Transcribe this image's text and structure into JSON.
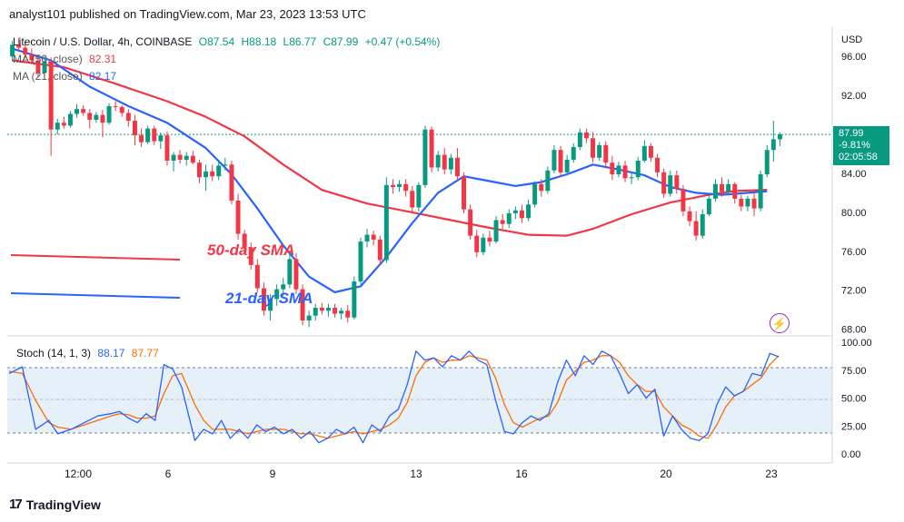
{
  "header": {
    "text": "analyst101 published on TradingView.com, Mar 23, 2023 13:53 UTC"
  },
  "legend": {
    "symbol": "Litecoin / U.S. Dollar, 4h, COINBASE",
    "open": "O87.54",
    "high": "H88.18",
    "low": "L86.77",
    "close": "C87.99",
    "change": "+0.47 (+0.54%)",
    "ma50": {
      "label": "MA (50, close)",
      "value": "82.31",
      "color": "#f23645"
    },
    "ma21": {
      "label": "MA (21, close)",
      "value": "82.17",
      "color": "#2962ff"
    }
  },
  "stoch": {
    "label": "Stoch (14, 1, 3)",
    "k_value": "88.17",
    "d_value": "87.77",
    "k_color": "#2962ff",
    "d_color": "#ff6d00"
  },
  "price_tag": {
    "price": "87.99",
    "change": "-9.81%",
    "countdown": "02:05:58",
    "color": "#089981"
  },
  "annotations": {
    "sma50": "50-day SMA",
    "sma21": "21-day SMA"
  },
  "brand": "TradingView",
  "chart_data": {
    "type": "candlestick",
    "currency": "USD",
    "price_ticks": [
      "96.00",
      "92.00",
      "88.00",
      "84.00",
      "80.00",
      "76.00",
      "72.00",
      "68.00"
    ],
    "stoch_ticks": [
      "100.00",
      "75.00",
      "50.00",
      "25.00",
      "0.00"
    ],
    "time_labels": [
      "12:00",
      "6",
      "9",
      "13",
      "16",
      "20",
      "23"
    ],
    "ylim": [
      67.5,
      99.0
    ],
    "last_price": 87.99,
    "candles": [
      [
        96.0,
        97.6,
        95.5,
        97.2
      ],
      [
        97.2,
        97.9,
        96.6,
        96.9
      ],
      [
        96.9,
        97.5,
        95.8,
        96.2
      ],
      [
        96.2,
        96.8,
        95.2,
        95.6
      ],
      [
        95.6,
        96.2,
        93.9,
        94.3
      ],
      [
        94.3,
        96.0,
        94.0,
        95.5
      ],
      [
        95.5,
        95.9,
        85.8,
        88.5
      ],
      [
        88.5,
        89.6,
        88.0,
        89.2
      ],
      [
        89.2,
        89.8,
        88.6,
        88.9
      ],
      [
        88.9,
        90.4,
        88.7,
        90.1
      ],
      [
        90.1,
        91.1,
        89.7,
        90.6
      ],
      [
        90.6,
        91.0,
        89.9,
        90.2
      ],
      [
        90.2,
        90.6,
        88.6,
        89.5
      ],
      [
        89.5,
        90.3,
        89.2,
        90.0
      ],
      [
        90.0,
        90.5,
        87.7,
        89.2
      ],
      [
        89.2,
        91.2,
        89.0,
        90.9
      ],
      [
        90.9,
        91.4,
        90.4,
        90.8
      ],
      [
        90.8,
        91.0,
        89.8,
        90.2
      ],
      [
        90.2,
        90.6,
        88.8,
        89.4
      ],
      [
        89.4,
        90.0,
        86.9,
        87.9
      ],
      [
        87.9,
        88.6,
        86.7,
        87.2
      ],
      [
        87.2,
        88.9,
        87.0,
        88.6
      ],
      [
        88.6,
        88.9,
        86.9,
        87.3
      ],
      [
        87.3,
        88.2,
        86.5,
        87.9
      ],
      [
        87.9,
        88.3,
        84.8,
        85.3
      ],
      [
        85.3,
        86.2,
        84.2,
        85.9
      ],
      [
        85.9,
        86.4,
        85.0,
        85.4
      ],
      [
        85.4,
        86.2,
        84.8,
        85.8
      ],
      [
        85.8,
        86.3,
        84.9,
        85.1
      ],
      [
        85.1,
        85.4,
        83.0,
        83.6
      ],
      [
        83.6,
        84.9,
        82.2,
        84.2
      ],
      [
        84.2,
        84.9,
        83.2,
        83.7
      ],
      [
        83.7,
        85.4,
        83.3,
        84.8
      ],
      [
        84.8,
        85.6,
        84.3,
        84.9
      ],
      [
        84.9,
        85.3,
        80.8,
        81.2
      ],
      [
        81.2,
        81.9,
        77.2,
        77.8
      ],
      [
        77.8,
        78.2,
        75.9,
        76.4
      ],
      [
        76.4,
        76.9,
        74.1,
        74.6
      ],
      [
        74.6,
        75.2,
        71.8,
        72.2
      ],
      [
        72.2,
        72.8,
        69.4,
        69.9
      ],
      [
        69.9,
        71.6,
        68.9,
        71.1
      ],
      [
        71.1,
        72.6,
        70.4,
        72.1
      ],
      [
        72.1,
        73.3,
        71.4,
        72.6
      ],
      [
        72.6,
        75.8,
        72.2,
        75.2
      ],
      [
        75.2,
        75.8,
        71.6,
        72.1
      ],
      [
        72.1,
        72.6,
        68.4,
        68.9
      ],
      [
        68.9,
        69.9,
        68.2,
        69.4
      ],
      [
        69.4,
        70.6,
        68.9,
        70.2
      ],
      [
        70.2,
        70.7,
        69.5,
        69.9
      ],
      [
        69.9,
        70.6,
        69.3,
        70.2
      ],
      [
        70.2,
        70.6,
        69.2,
        69.6
      ],
      [
        69.6,
        70.2,
        69.0,
        69.9
      ],
      [
        69.9,
        70.5,
        68.7,
        69.2
      ],
      [
        69.2,
        73.4,
        69.0,
        72.9
      ],
      [
        72.9,
        77.4,
        72.6,
        77.0
      ],
      [
        77.0,
        78.3,
        76.4,
        77.7
      ],
      [
        77.7,
        78.1,
        76.6,
        77.2
      ],
      [
        77.2,
        77.6,
        74.6,
        75.1
      ],
      [
        75.1,
        83.6,
        74.8,
        82.8
      ],
      [
        82.8,
        83.4,
        81.9,
        82.6
      ],
      [
        82.6,
        83.3,
        82.1,
        82.9
      ],
      [
        82.9,
        83.4,
        81.6,
        82.2
      ],
      [
        82.2,
        82.7,
        79.9,
        80.5
      ],
      [
        80.5,
        83.1,
        80.1,
        82.8
      ],
      [
        82.8,
        88.9,
        82.5,
        88.5
      ],
      [
        88.5,
        88.8,
        84.1,
        84.6
      ],
      [
        84.6,
        86.3,
        84.2,
        85.9
      ],
      [
        85.9,
        86.6,
        83.9,
        84.4
      ],
      [
        84.4,
        86.0,
        83.9,
        85.6
      ],
      [
        85.6,
        86.6,
        83.2,
        83.7
      ],
      [
        83.7,
        84.1,
        79.9,
        80.3
      ],
      [
        80.3,
        80.8,
        77.2,
        77.6
      ],
      [
        77.6,
        78.2,
        75.4,
        75.9
      ],
      [
        75.9,
        77.8,
        75.6,
        77.4
      ],
      [
        77.4,
        78.1,
        76.5,
        77.0
      ],
      [
        77.0,
        79.6,
        76.8,
        79.2
      ],
      [
        79.2,
        79.8,
        78.3,
        78.8
      ],
      [
        78.8,
        80.3,
        78.4,
        79.9
      ],
      [
        79.9,
        80.6,
        79.3,
        80.2
      ],
      [
        80.2,
        80.8,
        78.9,
        79.4
      ],
      [
        79.4,
        81.3,
        79.1,
        80.8
      ],
      [
        80.8,
        83.2,
        80.5,
        82.9
      ],
      [
        82.9,
        83.4,
        81.6,
        82.2
      ],
      [
        82.2,
        84.7,
        81.9,
        84.3
      ],
      [
        84.3,
        86.9,
        84.0,
        86.4
      ],
      [
        86.4,
        86.8,
        83.6,
        84.1
      ],
      [
        84.1,
        85.9,
        83.8,
        85.4
      ],
      [
        85.4,
        87.1,
        85.1,
        86.7
      ],
      [
        86.7,
        88.6,
        86.4,
        88.2
      ],
      [
        88.2,
        88.6,
        87.1,
        87.6
      ],
      [
        87.6,
        88.2,
        85.1,
        85.6
      ],
      [
        85.6,
        87.2,
        85.3,
        86.9
      ],
      [
        86.9,
        87.3,
        84.6,
        85.1
      ],
      [
        85.1,
        85.8,
        83.3,
        83.9
      ],
      [
        83.9,
        85.2,
        83.6,
        84.8
      ],
      [
        84.8,
        85.3,
        83.1,
        83.5
      ],
      [
        83.5,
        84.0,
        82.9,
        83.6
      ],
      [
        83.6,
        85.7,
        83.3,
        85.3
      ],
      [
        85.3,
        87.4,
        85.1,
        86.8
      ],
      [
        86.8,
        87.1,
        85.2,
        85.6
      ],
      [
        85.6,
        86.0,
        83.6,
        84.1
      ],
      [
        84.1,
        84.5,
        81.5,
        81.9
      ],
      [
        81.9,
        84.3,
        81.6,
        83.8
      ],
      [
        83.8,
        84.3,
        81.9,
        82.4
      ],
      [
        82.4,
        82.8,
        79.6,
        80.1
      ],
      [
        80.1,
        80.6,
        78.6,
        79.1
      ],
      [
        79.1,
        80.1,
        77.1,
        77.6
      ],
      [
        77.6,
        80.3,
        77.3,
        79.8
      ],
      [
        79.8,
        81.8,
        79.6,
        81.4
      ],
      [
        81.4,
        83.4,
        81.1,
        82.9
      ],
      [
        82.9,
        83.6,
        81.6,
        82.1
      ],
      [
        82.1,
        83.4,
        81.8,
        82.9
      ],
      [
        82.9,
        83.1,
        80.9,
        81.4
      ],
      [
        81.4,
        81.8,
        80.1,
        80.6
      ],
      [
        80.6,
        81.7,
        80.1,
        81.4
      ],
      [
        81.4,
        82.2,
        79.6,
        80.4
      ],
      [
        80.4,
        84.3,
        80.1,
        83.9
      ],
      [
        83.9,
        86.9,
        83.6,
        86.4
      ],
      [
        86.4,
        89.4,
        85.2,
        87.5
      ],
      [
        87.5,
        88.2,
        86.8,
        88.0
      ]
    ],
    "ma50": [
      [
        0,
        95.6
      ],
      [
        8,
        94.9
      ],
      [
        16,
        93.2
      ],
      [
        24,
        91.4
      ],
      [
        30,
        89.8
      ],
      [
        36,
        87.8
      ],
      [
        42,
        84.9
      ],
      [
        48,
        82.3
      ],
      [
        55,
        80.9
      ],
      [
        62,
        80.0
      ],
      [
        68,
        79.2
      ],
      [
        74,
        78.4
      ],
      [
        80,
        77.7
      ],
      [
        86,
        77.6
      ],
      [
        90,
        78.3
      ],
      [
        96,
        79.8
      ],
      [
        102,
        81.0
      ],
      [
        108,
        81.8
      ],
      [
        112,
        82.2
      ],
      [
        117,
        82.31
      ]
    ],
    "ma21": [
      [
        0,
        96.8
      ],
      [
        6,
        95.6
      ],
      [
        12,
        92.9
      ],
      [
        18,
        90.9
      ],
      [
        24,
        89.2
      ],
      [
        30,
        86.6
      ],
      [
        34,
        83.9
      ],
      [
        38,
        80.4
      ],
      [
        42,
        76.6
      ],
      [
        46,
        73.4
      ],
      [
        50,
        71.8
      ],
      [
        54,
        72.4
      ],
      [
        58,
        75.4
      ],
      [
        62,
        78.9
      ],
      [
        66,
        82.0
      ],
      [
        70,
        83.7
      ],
      [
        74,
        83.2
      ],
      [
        78,
        82.7
      ],
      [
        82,
        83.1
      ],
      [
        86,
        83.9
      ],
      [
        90,
        84.9
      ],
      [
        94,
        84.4
      ],
      [
        98,
        83.8
      ],
      [
        102,
        82.6
      ],
      [
        106,
        82.0
      ],
      [
        110,
        81.8
      ],
      [
        114,
        82.0
      ],
      [
        117,
        82.17
      ]
    ],
    "stoch_k": [
      [
        0,
        72
      ],
      [
        3,
        78
      ],
      [
        6,
        22
      ],
      [
        9,
        30
      ],
      [
        11,
        18
      ],
      [
        14,
        22
      ],
      [
        17,
        28
      ],
      [
        20,
        34
      ],
      [
        23,
        36
      ],
      [
        25,
        38
      ],
      [
        27,
        32
      ],
      [
        29,
        28
      ],
      [
        31,
        36
      ],
      [
        33,
        30
      ],
      [
        35,
        80
      ],
      [
        37,
        76
      ],
      [
        39,
        60
      ],
      [
        42,
        12
      ],
      [
        44,
        22
      ],
      [
        46,
        18
      ],
      [
        48,
        30
      ],
      [
        50,
        14
      ],
      [
        52,
        22
      ],
      [
        54,
        14
      ],
      [
        56,
        26
      ],
      [
        58,
        20
      ],
      [
        60,
        24
      ],
      [
        62,
        18
      ],
      [
        64,
        22
      ],
      [
        66,
        14
      ],
      [
        68,
        20
      ],
      [
        70,
        10
      ],
      [
        72,
        14
      ],
      [
        74,
        22
      ],
      [
        76,
        18
      ],
      [
        78,
        24
      ],
      [
        80,
        10
      ],
      [
        82,
        26
      ],
      [
        84,
        20
      ],
      [
        86,
        34
      ],
      [
        88,
        40
      ],
      [
        90,
        62
      ],
      [
        92,
        92
      ],
      [
        94,
        84
      ],
      [
        96,
        86
      ],
      [
        98,
        78
      ],
      [
        100,
        88
      ],
      [
        102,
        84
      ],
      [
        104,
        92
      ],
      [
        106,
        84
      ],
      [
        108,
        80
      ],
      [
        110,
        48
      ],
      [
        112,
        20
      ],
      [
        114,
        18
      ],
      [
        116,
        28
      ],
      [
        118,
        34
      ],
      [
        120,
        30
      ],
      [
        122,
        36
      ],
      [
        124,
        64
      ],
      [
        126,
        84
      ],
      [
        128,
        70
      ],
      [
        130,
        88
      ],
      [
        132,
        80
      ],
      [
        134,
        92
      ],
      [
        136,
        88
      ],
      [
        138,
        72
      ],
      [
        140,
        54
      ],
      [
        142,
        62
      ],
      [
        144,
        50
      ],
      [
        146,
        58
      ],
      [
        148,
        16
      ],
      [
        150,
        34
      ],
      [
        152,
        22
      ],
      [
        154,
        14
      ],
      [
        156,
        12
      ],
      [
        158,
        18
      ],
      [
        160,
        44
      ],
      [
        162,
        60
      ],
      [
        164,
        52
      ],
      [
        166,
        56
      ],
      [
        168,
        72
      ],
      [
        170,
        70
      ],
      [
        172,
        90
      ],
      [
        174,
        87
      ]
    ],
    "stoch_d": [
      [
        0,
        74
      ],
      [
        3,
        72
      ],
      [
        6,
        48
      ],
      [
        9,
        28
      ],
      [
        11,
        24
      ],
      [
        14,
        22
      ],
      [
        17,
        26
      ],
      [
        20,
        30
      ],
      [
        23,
        34
      ],
      [
        25,
        36
      ],
      [
        27,
        35
      ],
      [
        29,
        32
      ],
      [
        31,
        32
      ],
      [
        33,
        34
      ],
      [
        35,
        54
      ],
      [
        37,
        70
      ],
      [
        39,
        72
      ],
      [
        42,
        44
      ],
      [
        44,
        30
      ],
      [
        46,
        22
      ],
      [
        48,
        22
      ],
      [
        50,
        22
      ],
      [
        52,
        20
      ],
      [
        54,
        18
      ],
      [
        56,
        20
      ],
      [
        58,
        22
      ],
      [
        60,
        22
      ],
      [
        62,
        22
      ],
      [
        64,
        20
      ],
      [
        66,
        18
      ],
      [
        68,
        18
      ],
      [
        70,
        16
      ],
      [
        72,
        14
      ],
      [
        74,
        16
      ],
      [
        76,
        18
      ],
      [
        78,
        20
      ],
      [
        80,
        18
      ],
      [
        82,
        20
      ],
      [
        84,
        22
      ],
      [
        86,
        26
      ],
      [
        88,
        32
      ],
      [
        90,
        46
      ],
      [
        92,
        70
      ],
      [
        94,
        82
      ],
      [
        96,
        86
      ],
      [
        98,
        82
      ],
      [
        100,
        84
      ],
      [
        102,
        84
      ],
      [
        104,
        88
      ],
      [
        106,
        86
      ],
      [
        108,
        84
      ],
      [
        110,
        68
      ],
      [
        112,
        44
      ],
      [
        114,
        28
      ],
      [
        116,
        24
      ],
      [
        118,
        28
      ],
      [
        120,
        32
      ],
      [
        122,
        34
      ],
      [
        124,
        46
      ],
      [
        126,
        66
      ],
      [
        128,
        74
      ],
      [
        130,
        82
      ],
      [
        132,
        84
      ],
      [
        134,
        88
      ],
      [
        136,
        88
      ],
      [
        138,
        82
      ],
      [
        140,
        70
      ],
      [
        142,
        62
      ],
      [
        144,
        56
      ],
      [
        146,
        56
      ],
      [
        148,
        42
      ],
      [
        150,
        34
      ],
      [
        152,
        26
      ],
      [
        154,
        22
      ],
      [
        156,
        16
      ],
      [
        158,
        14
      ],
      [
        160,
        26
      ],
      [
        162,
        42
      ],
      [
        164,
        52
      ],
      [
        166,
        56
      ],
      [
        168,
        62
      ],
      [
        170,
        68
      ],
      [
        172,
        80
      ],
      [
        174,
        88
      ]
    ]
  }
}
